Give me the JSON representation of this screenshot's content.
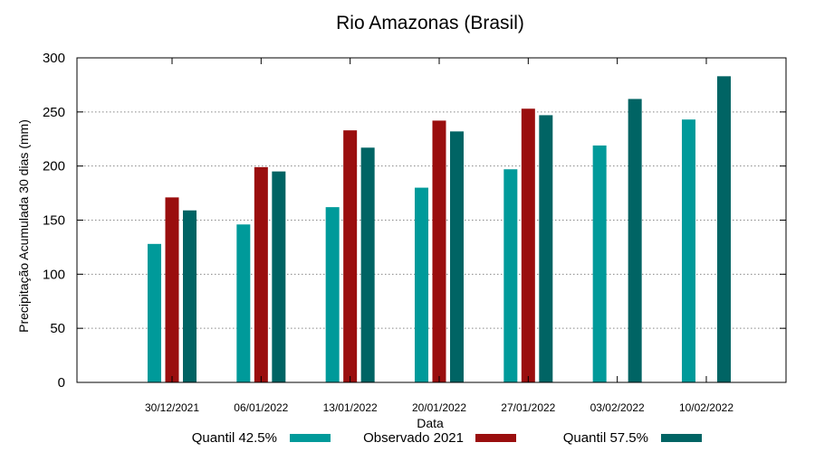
{
  "chart_data": {
    "type": "bar",
    "title": "Rio Amazonas (Brasil)",
    "xlabel": "Data",
    "ylabel": "Precipitação Acumulada 30 dias (mm)",
    "ylim": [
      0,
      300
    ],
    "yticks": [
      0,
      50,
      100,
      150,
      200,
      250,
      300
    ],
    "grid": true,
    "legend_position": "bottom",
    "categories": [
      "30/12/2021",
      "06/01/2022",
      "13/01/2022",
      "20/01/2022",
      "27/01/2022",
      "03/02/2022",
      "10/02/2022"
    ],
    "series": [
      {
        "name": "Quantil 42.5%",
        "color": "#009a9a",
        "values": [
          128,
          146,
          162,
          180,
          197,
          219,
          243
        ]
      },
      {
        "name": "Observado 2021",
        "color": "#9a0e0e",
        "values": [
          171,
          199,
          233,
          242,
          253,
          null,
          null
        ]
      },
      {
        "name": "Quantil 57.5%",
        "color": "#006464",
        "values": [
          159,
          195,
          217,
          232,
          247,
          262,
          283
        ]
      }
    ]
  }
}
